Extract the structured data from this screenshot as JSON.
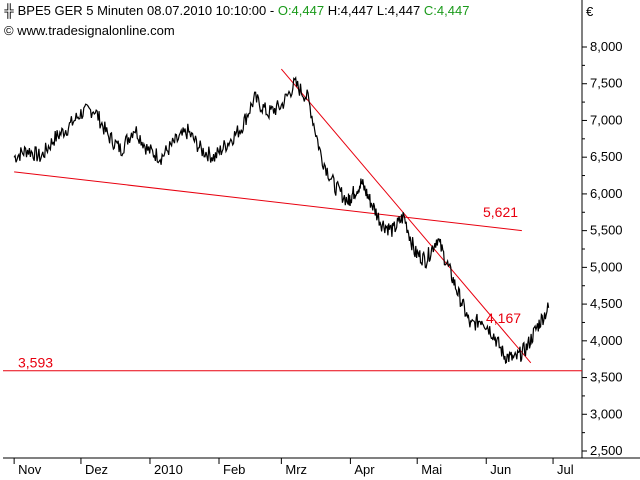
{
  "header": {
    "symbol": "BPE5 GER 5 Minuten",
    "datetime": "08.07.2010 10:10:00",
    "ohlc_sep": " - ",
    "open": "O:4,447",
    "high": "H:4,447",
    "low": "L:4,447",
    "close": "C:4,447",
    "watermark": "© www.tradesignalonline.com",
    "candle_icon": "candle-icon",
    "currency": "€"
  },
  "chart_data": {
    "type": "line",
    "x_ticks": [
      "Nov",
      "Dez",
      "2010",
      "Feb",
      "Mrz",
      "Apr",
      "Mai",
      "Jun",
      "Jul"
    ],
    "y_ticks": [
      "2,500",
      "3,000",
      "3,500",
      "4,000",
      "4,500",
      "5,000",
      "5,500",
      "6,000",
      "6,500",
      "7,000",
      "7,500",
      "8,000"
    ],
    "ylim": [
      2.4,
      8.4
    ],
    "x_tick_values": [
      0,
      30,
      61,
      92,
      120,
      151,
      181,
      212,
      242
    ],
    "xlim": [
      -5,
      255
    ],
    "colors": {
      "price": "#000000",
      "trendline": "#e8000f",
      "label": "#e8000f",
      "axis": "#000000"
    },
    "series": [
      {
        "values_x": [
          0,
          6,
          12,
          18,
          24,
          30,
          36,
          42,
          48,
          54,
          60,
          66,
          72,
          78,
          84,
          90,
          96,
          102,
          108,
          114,
          120,
          126,
          132,
          138,
          144,
          150,
          152,
          156,
          160,
          165,
          170,
          175,
          180,
          185,
          190,
          195,
          200,
          205,
          210,
          215,
          220,
          225,
          230,
          235,
          240
        ],
        "values_y": [
          6.5,
          6.6,
          6.5,
          6.75,
          6.9,
          7.1,
          7.15,
          6.8,
          6.6,
          6.9,
          6.6,
          6.5,
          6.7,
          6.85,
          6.6,
          6.5,
          6.7,
          6.9,
          7.3,
          7.1,
          7.2,
          7.5,
          7.3,
          6.5,
          6.1,
          5.9,
          6.0,
          6.15,
          5.9,
          5.6,
          5.5,
          5.7,
          5.2,
          5.1,
          5.4,
          5.0,
          4.6,
          4.2,
          4.3,
          4.1,
          3.8,
          3.75,
          3.9,
          4.2,
          4.45
        ]
      }
    ],
    "trendlines": [
      {
        "x1": 0,
        "y1": 6.3,
        "x2": 228,
        "y2": 5.5
      },
      {
        "x1": 120,
        "y1": 7.7,
        "x2": 232,
        "y2": 3.7
      },
      {
        "x1": -5,
        "y1": 3.593,
        "x2": 255,
        "y2": 3.593
      }
    ],
    "annotations": [
      {
        "text": "5,621",
        "x": 205,
        "y": 5.621
      },
      {
        "text": "4,167",
        "x": 218,
        "y": 4.167
      },
      {
        "text": "3,593",
        "x": 0,
        "y": 3.593
      }
    ]
  }
}
